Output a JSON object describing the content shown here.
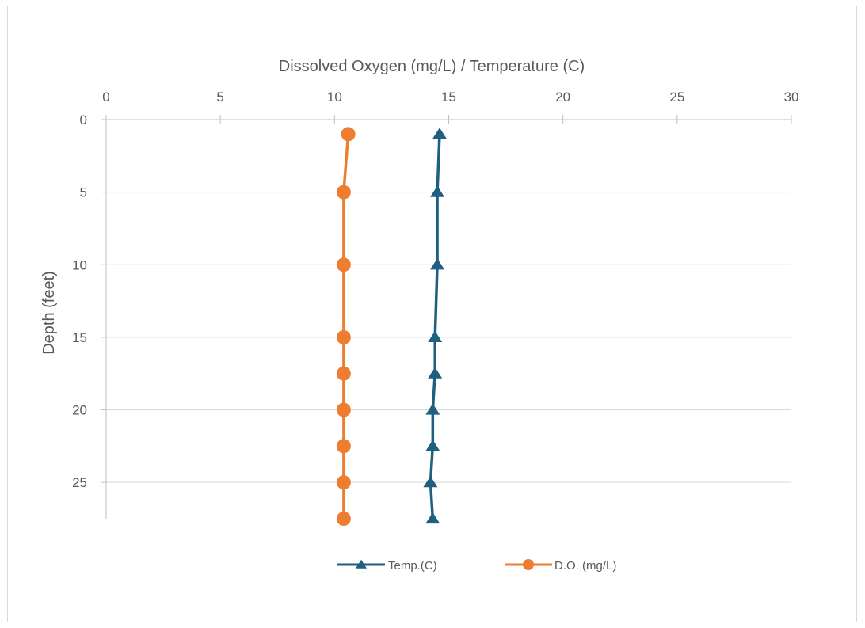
{
  "chart_data": {
    "type": "line",
    "orientation": "vertical-profile",
    "title": "",
    "xlabel": "Dissolved Oxygen (mg/L) / Temperature (C)",
    "ylabel": "Depth (feet)",
    "x_axis_position": "top",
    "y_axis_reversed": true,
    "xlim": [
      0,
      30
    ],
    "ylim": [
      0,
      27.5
    ],
    "x_ticks": [
      0,
      5,
      10,
      15,
      20,
      25,
      30
    ],
    "y_ticks": [
      0,
      5,
      10,
      15,
      20,
      25
    ],
    "x_tick_labels": [
      "0",
      "5",
      "10",
      "15",
      "20",
      "25",
      "30"
    ],
    "y_tick_labels": [
      "0",
      "5",
      "10",
      "15",
      "20",
      "25"
    ],
    "grid": "horizontal",
    "legend_position": "bottom",
    "series": [
      {
        "name": "Temp.(C)",
        "color": "#1f5f7f",
        "marker": "triangle",
        "points": [
          {
            "depth": 1,
            "value": 14.6
          },
          {
            "depth": 5,
            "value": 14.5
          },
          {
            "depth": 10,
            "value": 14.5
          },
          {
            "depth": 15,
            "value": 14.4
          },
          {
            "depth": 17.5,
            "value": 14.4
          },
          {
            "depth": 20,
            "value": 14.3
          },
          {
            "depth": 22.5,
            "value": 14.3
          },
          {
            "depth": 25,
            "value": 14.2
          },
          {
            "depth": 27.5,
            "value": 14.3
          }
        ]
      },
      {
        "name": "D.O. (mg/L)",
        "color": "#ed7d31",
        "marker": "circle",
        "points": [
          {
            "depth": 1,
            "value": 10.6
          },
          {
            "depth": 5,
            "value": 10.4
          },
          {
            "depth": 10,
            "value": 10.4
          },
          {
            "depth": 15,
            "value": 10.4
          },
          {
            "depth": 17.5,
            "value": 10.4
          },
          {
            "depth": 20,
            "value": 10.4
          },
          {
            "depth": 22.5,
            "value": 10.4
          },
          {
            "depth": 25,
            "value": 10.4
          },
          {
            "depth": 27.5,
            "value": 10.4
          }
        ]
      }
    ]
  }
}
